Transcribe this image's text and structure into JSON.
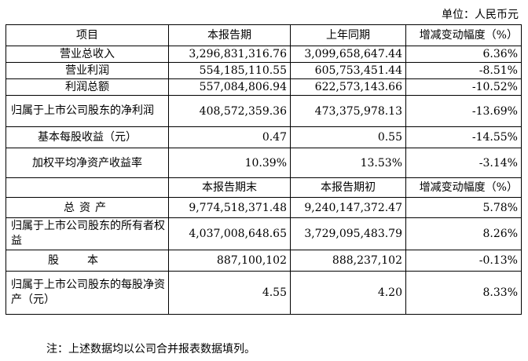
{
  "unit_label": "单位：人民币元",
  "header1": {
    "item": "项目",
    "current": "本报告期",
    "prior": "上年同期",
    "change": "增减变动幅度（%）"
  },
  "rows1": [
    {
      "item": "营业总收入",
      "current": "3,296,831,316.76",
      "prior": "3,099,658,647.44",
      "change": "6.36%"
    },
    {
      "item": "营业利润",
      "current": "554,185,110.55",
      "prior": "605,753,451.44",
      "change": "-8.51%"
    },
    {
      "item": "利润总额",
      "current": "557,084,806.94",
      "prior": "622,573,143.66",
      "change": "-10.52%"
    },
    {
      "item": "归属于上市公司股东的净利润",
      "current": "408,572,359.36",
      "prior": "473,375,978.13",
      "change": "-13.69%"
    },
    {
      "item": "基本每股收益（元）",
      "current": "0.47",
      "prior": "0.55",
      "change": "-14.55%"
    },
    {
      "item": "加权平均净资产收益率",
      "current": "10.39%",
      "prior": "13.53%",
      "change": "-3.14%"
    }
  ],
  "header2": {
    "current": "本报告期末",
    "prior": "本报告期初",
    "change": "增减变动幅度（%）"
  },
  "rows2": [
    {
      "item": "总资产",
      "current": "9,774,518,371.48",
      "prior": "9,240,147,372.47",
      "change": "5.78%"
    },
    {
      "item": "归属于上市公司股东的所有者权益",
      "current": "4,037,008,648.65",
      "prior": "3,729,095,483.79",
      "change": "8.26%"
    },
    {
      "item": "股本",
      "current": "887,100,102",
      "prior": "888,237,102",
      "change": "-0.13%"
    },
    {
      "item": "归属于上市公司股东的每股净资产（元）",
      "current": "4.55",
      "prior": "4.20",
      "change": "8.33%"
    }
  ],
  "note": "注：上述数据均以公司合并报表数据填列。"
}
